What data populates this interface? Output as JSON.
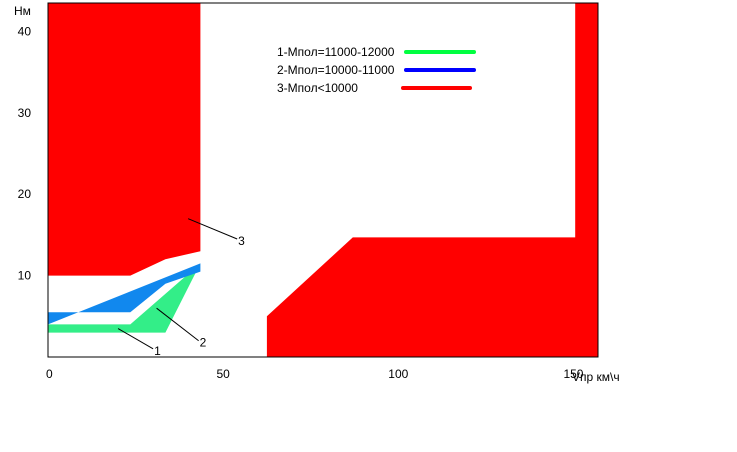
{
  "chart_data": {
    "type": "area",
    "title": "",
    "xlabel": "Vпр км\\ч",
    "ylabel": "Нм",
    "xlim": [
      0,
      157
    ],
    "ylim": [
      0,
      43.5
    ],
    "x_ticks": [
      {
        "value": 0,
        "label": "0"
      },
      {
        "value": 50,
        "label": "50"
      },
      {
        "value": 100,
        "label": "100"
      },
      {
        "value": 150,
        "label": "150"
      }
    ],
    "y_ticks": [
      {
        "value": 10,
        "label": "10"
      },
      {
        "value": 20,
        "label": "20"
      },
      {
        "value": 30,
        "label": "30"
      },
      {
        "value": 40,
        "label": "40"
      }
    ],
    "legend": {
      "placement": "top-center",
      "entries": [
        {
          "label": "1-Мпол=11000-12000",
          "color": "#00ff40"
        },
        {
          "label": "2-Мпол=10000-11000",
          "color": "#0000ff"
        },
        {
          "label": "3-Мпол<10000",
          "color": "#ff0000"
        }
      ]
    },
    "regions": [
      {
        "id": "region-1",
        "color": "#33ee88",
        "points": [
          [
            0,
            3
          ],
          [
            0,
            4
          ],
          [
            23.5,
            4
          ],
          [
            43.5,
            11.5
          ],
          [
            33.5,
            3
          ]
        ]
      },
      {
        "id": "region-2",
        "color": "#1188ee",
        "points": [
          [
            0,
            4
          ],
          [
            0,
            5.5
          ],
          [
            23.5,
            5.5
          ],
          [
            33.5,
            9
          ],
          [
            43.5,
            10.5
          ],
          [
            43.5,
            11.5
          ]
        ]
      },
      {
        "id": "region-3-left",
        "color": "#ff0000",
        "points": [
          [
            0,
            10
          ],
          [
            0,
            43.5
          ],
          [
            43.5,
            43.5
          ],
          [
            43.5,
            13
          ],
          [
            33.5,
            12
          ],
          [
            23.5,
            10
          ]
        ]
      },
      {
        "id": "region-3-right",
        "color": "#ff0000",
        "points": [
          [
            62.5,
            0
          ],
          [
            62.5,
            5
          ],
          [
            87,
            14.7
          ],
          [
            150.5,
            14.7
          ],
          [
            150.5,
            43.5
          ],
          [
            157,
            43.5
          ],
          [
            157,
            0
          ]
        ]
      }
    ],
    "callouts": [
      {
        "label": "1",
        "from": [
          20,
          3.5
        ],
        "to": [
          30,
          1
        ]
      },
      {
        "label": "2",
        "from": [
          31,
          6
        ],
        "to": [
          43,
          2
        ]
      },
      {
        "label": "3",
        "from": [
          40,
          17
        ],
        "to": [
          54,
          14.5
        ]
      }
    ]
  }
}
